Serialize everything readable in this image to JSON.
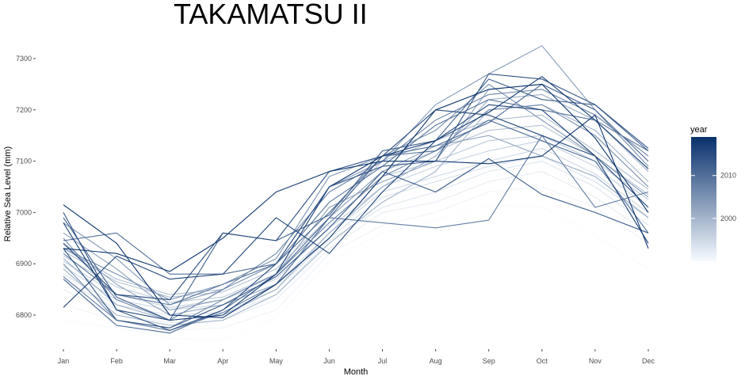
{
  "chart_data": {
    "type": "line",
    "title": "TAKAMATSU II",
    "xlabel": "Month",
    "ylabel": "Relative Sea Level (mm)",
    "categories": [
      "Jan",
      "Feb",
      "Mar",
      "Apr",
      "May",
      "Jun",
      "Jul",
      "Aug",
      "Sep",
      "Oct",
      "Nov",
      "Dec"
    ],
    "y_ticks": [
      6800,
      6900,
      7000,
      7100,
      7200,
      7300
    ],
    "ylim": [
      6750,
      7330
    ],
    "grid": false,
    "legend": {
      "title": "year",
      "position": "right",
      "labels": [
        "2000",
        "2010"
      ],
      "min_year": 1990,
      "max_year": 2019,
      "low_color": "#f7fbff",
      "high_color": "#08306b"
    },
    "series": [
      {
        "year": 1990,
        "values": [
          6790,
          6775,
          6755,
          6750,
          6795,
          6905,
          6960,
          6985,
          7015,
          7010,
          6955,
          6890
        ]
      },
      {
        "year": 1991,
        "values": [
          6820,
          6790,
          6770,
          6775,
          6810,
          6920,
          6975,
          7000,
          7040,
          7050,
          7010,
          6940
        ]
      },
      {
        "year": 1992,
        "values": [
          6850,
          6800,
          6785,
          6790,
          6830,
          6930,
          7000,
          7020,
          7060,
          7080,
          7030,
          6960
        ]
      },
      {
        "year": 1993,
        "values": [
          6870,
          6810,
          6790,
          6800,
          6840,
          6945,
          7010,
          7040,
          7080,
          7100,
          7050,
          6975
        ]
      },
      {
        "year": 1994,
        "values": [
          6880,
          6820,
          6800,
          6805,
          6850,
          6950,
          7030,
          7060,
          7090,
          7110,
          7060,
          6990
        ]
      },
      {
        "year": 1995,
        "values": [
          6895,
          6830,
          6810,
          6820,
          6860,
          6960,
          7040,
          7070,
          7100,
          7125,
          7075,
          7000
        ]
      },
      {
        "year": 1996,
        "values": [
          6905,
          6840,
          6815,
          6830,
          6870,
          6970,
          7050,
          7090,
          7120,
          7140,
          7090,
          7010
        ]
      },
      {
        "year": 1997,
        "values": [
          6915,
          6855,
          6825,
          6835,
          6880,
          6980,
          7070,
          7100,
          7140,
          7150,
          7100,
          7025
        ]
      },
      {
        "year": 1998,
        "values": [
          6925,
          6865,
          6835,
          6845,
          6890,
          6990,
          7080,
          7120,
          7160,
          7170,
          7110,
          7035
        ]
      },
      {
        "year": 1999,
        "values": [
          6930,
          6870,
          6840,
          6850,
          6900,
          7000,
          7100,
          7140,
          7180,
          7190,
          7120,
          7045
        ]
      },
      {
        "year": 2000,
        "values": [
          6890,
          6800,
          6780,
          6790,
          6840,
          6940,
          7020,
          7080,
          7200,
          7210,
          7160,
          7060
        ]
      },
      {
        "year": 2001,
        "values": [
          6910,
          6820,
          6790,
          6800,
          6850,
          6960,
          7050,
          7110,
          7220,
          7230,
          7180,
          7080
        ]
      },
      {
        "year": 2002,
        "values": [
          6940,
          6860,
          6800,
          6820,
          6860,
          6990,
          7080,
          7130,
          7150,
          7110,
          7070,
          6990
        ]
      },
      {
        "year": 2003,
        "values": [
          6960,
          6890,
          6810,
          6830,
          6880,
          7010,
          7060,
          7100,
          7240,
          7250,
          7200,
          7090
        ]
      },
      {
        "year": 2004,
        "values": [
          6980,
          6910,
          6820,
          6850,
          6900,
          7050,
          7100,
          7210,
          7270,
          7325,
          7200,
          7090
        ]
      },
      {
        "year": 2005,
        "values": [
          6930,
          6880,
          6830,
          6860,
          6910,
          7070,
          7110,
          7160,
          7250,
          7180,
          7110,
          7030
        ]
      },
      {
        "year": 2006,
        "values": [
          6900,
          6790,
          6775,
          6830,
          6880,
          6980,
          7070,
          7120,
          7200,
          7210,
          7150,
          7050
        ]
      },
      {
        "year": 2007,
        "values": [
          6950,
          6830,
          6790,
          6850,
          6920,
          7040,
          7100,
          7180,
          7230,
          7240,
          7190,
          7110
        ]
      },
      {
        "year": 2008,
        "values": [
          6875,
          6790,
          6770,
          6805,
          6860,
          6990,
          6980,
          6970,
          6985,
          7150,
          7010,
          7040
        ]
      },
      {
        "year": 2009,
        "values": [
          6920,
          6840,
          6820,
          6860,
          6900,
          7020,
          7090,
          7170,
          7220,
          7200,
          7180,
          7120
        ]
      },
      {
        "year": 2010,
        "values": [
          6945,
          6960,
          6880,
          6880,
          6900,
          7000,
          7110,
          7120,
          7180,
          7140,
          7100,
          6960
        ]
      },
      {
        "year": 2011,
        "values": [
          6870,
          6780,
          6765,
          6810,
          6880,
          6990,
          7110,
          7130,
          7175,
          7250,
          7200,
          7100
        ]
      },
      {
        "year": 2012,
        "values": [
          6990,
          6835,
          6790,
          6960,
          6945,
          6995,
          7120,
          7140,
          7260,
          7220,
          7210,
          7120
        ]
      },
      {
        "year": 2013,
        "values": [
          6930,
          6790,
          6775,
          6820,
          6875,
          6970,
          7080,
          7040,
          7105,
          7035,
          7000,
          6960
        ]
      },
      {
        "year": 2014,
        "values": [
          7000,
          6810,
          6770,
          6810,
          6900,
          7050,
          7090,
          7100,
          7270,
          7260,
          7210,
          7125
        ]
      },
      {
        "year": 2015,
        "values": [
          6940,
          6840,
          6830,
          6960,
          6945,
          7080,
          7110,
          7200,
          7190,
          7150,
          7110,
          7010
        ]
      },
      {
        "year": 2016,
        "values": [
          6815,
          6915,
          6870,
          6880,
          6990,
          6920,
          7040,
          7140,
          7210,
          7200,
          7110,
          6940
        ]
      },
      {
        "year": 2017,
        "values": [
          6980,
          6810,
          6790,
          6800,
          6880,
          7050,
          7110,
          7140,
          7195,
          7265,
          7180,
          7085
        ]
      },
      {
        "year": 2018,
        "values": [
          6930,
          6920,
          6885,
          6950,
          7040,
          7080,
          7100,
          7100,
          7095,
          7110,
          7190,
          6930
        ]
      },
      {
        "year": 2019,
        "values": [
          7015,
          6940,
          6800,
          6795,
          6860,
          6950,
          7070,
          7200,
          7240,
          7250,
          7145,
          7000
        ]
      }
    ]
  }
}
